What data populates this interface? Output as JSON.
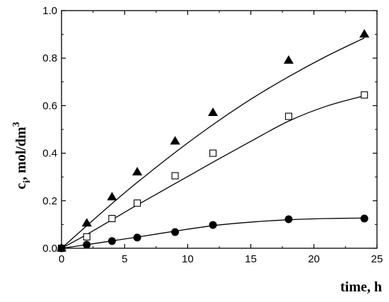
{
  "chart_data": {
    "type": "scatter",
    "xlabel": "time, h",
    "ylabel": {
      "main": "c",
      "sub": "i",
      "rest": ", mol/dm",
      "sup": "3"
    },
    "xlim": [
      0,
      25
    ],
    "ylim": [
      0,
      1.0
    ],
    "xticks": [
      0,
      5,
      10,
      15,
      20,
      25
    ],
    "yticks": [
      0.0,
      0.2,
      0.4,
      0.6,
      0.8,
      1.0
    ],
    "xtick_labels": [
      "0",
      "5",
      "10",
      "15",
      "20",
      "25"
    ],
    "ytick_labels": [
      "0.0",
      "0.2",
      "0.4",
      "0.6",
      "0.8",
      "1.0"
    ],
    "grid": false,
    "series": [
      {
        "marker": "triangle",
        "fill": "#000000",
        "points": [
          [
            0,
            0.0
          ],
          [
            2,
            0.105
          ],
          [
            4,
            0.215
          ],
          [
            6,
            0.32
          ],
          [
            9,
            0.45
          ],
          [
            12,
            0.57
          ],
          [
            18,
            0.79
          ],
          [
            24,
            0.9
          ]
        ],
        "fit": [
          [
            0,
            0.0
          ],
          [
            2,
            0.095
          ],
          [
            4,
            0.188
          ],
          [
            6,
            0.277
          ],
          [
            9,
            0.403
          ],
          [
            12,
            0.52
          ],
          [
            15,
            0.627
          ],
          [
            18,
            0.722
          ],
          [
            21,
            0.808
          ],
          [
            24,
            0.885
          ]
        ]
      },
      {
        "marker": "square-open",
        "fill": "#ffffff",
        "points": [
          [
            0,
            0.0
          ],
          [
            2,
            0.048
          ],
          [
            4,
            0.125
          ],
          [
            6,
            0.19
          ],
          [
            9,
            0.305
          ],
          [
            12,
            0.4
          ],
          [
            18,
            0.555
          ],
          [
            24,
            0.645
          ]
        ],
        "fit": [
          [
            0,
            0.0
          ],
          [
            2,
            0.058
          ],
          [
            4,
            0.12
          ],
          [
            6,
            0.182
          ],
          [
            9,
            0.272
          ],
          [
            12,
            0.362
          ],
          [
            15,
            0.45
          ],
          [
            18,
            0.535
          ],
          [
            21,
            0.598
          ],
          [
            24,
            0.642
          ]
        ]
      },
      {
        "marker": "circle",
        "fill": "#000000",
        "points": [
          [
            0,
            0.0
          ],
          [
            2,
            0.015
          ],
          [
            4,
            0.03
          ],
          [
            6,
            0.045
          ],
          [
            9,
            0.068
          ],
          [
            12,
            0.098
          ],
          [
            18,
            0.122
          ],
          [
            24,
            0.125
          ]
        ],
        "fit": [
          [
            0,
            0.0
          ],
          [
            2,
            0.015
          ],
          [
            4,
            0.031
          ],
          [
            6,
            0.047
          ],
          [
            9,
            0.072
          ],
          [
            12,
            0.095
          ],
          [
            15,
            0.11
          ],
          [
            18,
            0.12
          ],
          [
            21,
            0.125
          ],
          [
            24,
            0.127
          ]
        ]
      }
    ]
  }
}
